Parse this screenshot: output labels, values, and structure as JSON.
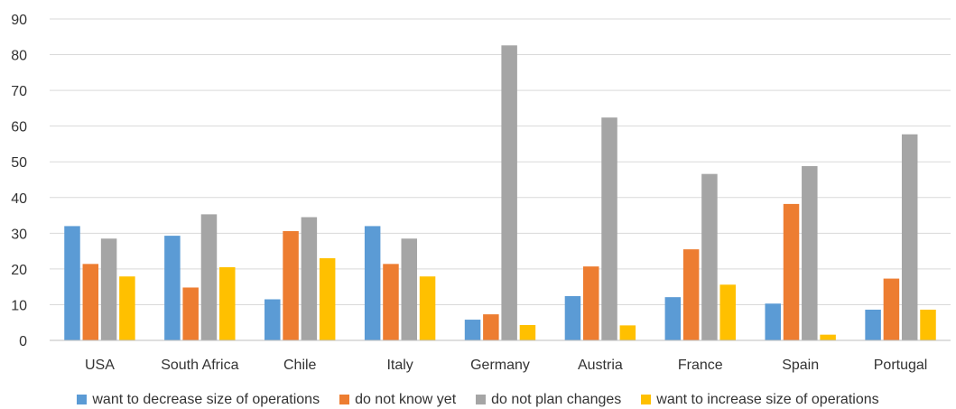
{
  "chart_data": {
    "type": "bar",
    "categories": [
      "USA",
      "South Africa",
      "Chile",
      "Italy",
      "Germany",
      "Austria",
      "France",
      "Spain",
      "Portugal"
    ],
    "series": [
      {
        "name": "want to decrease size of operations",
        "color": "#5b9bd5",
        "values": [
          32,
          29.3,
          11.5,
          32,
          5.8,
          12.4,
          12.1,
          10.3,
          8.6
        ]
      },
      {
        "name": "do not know yet",
        "color": "#ed7d31",
        "values": [
          21.4,
          14.8,
          30.6,
          21.4,
          7.3,
          20.7,
          25.5,
          38.2,
          17.3
        ]
      },
      {
        "name": "do not plan changes",
        "color": "#a5a5a5",
        "values": [
          28.5,
          35.3,
          34.5,
          28.5,
          82.6,
          62.4,
          46.6,
          48.8,
          57.7
        ]
      },
      {
        "name": "want to increase size of operations",
        "color": "#ffc000",
        "values": [
          17.9,
          20.5,
          23,
          17.9,
          4.3,
          4.2,
          15.6,
          1.6,
          8.6
        ]
      }
    ],
    "ylim": [
      0,
      90
    ],
    "yticks": [
      "0",
      "10",
      "20",
      "30",
      "40",
      "50",
      "60",
      "70",
      "80",
      "90"
    ],
    "grid": true,
    "legend_position": "bottom"
  }
}
